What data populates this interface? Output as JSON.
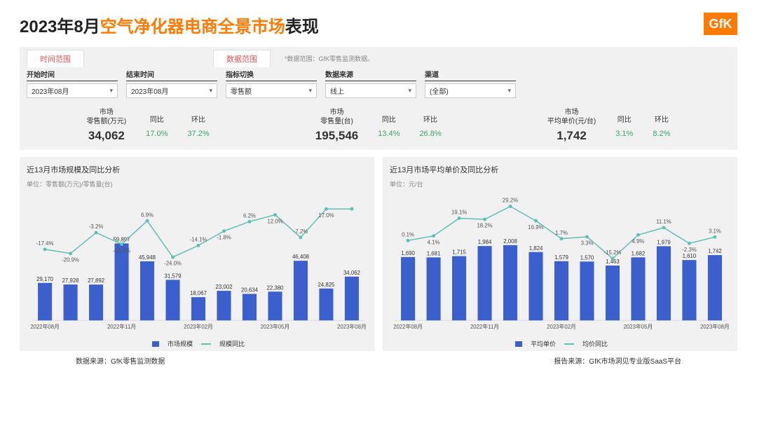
{
  "title": {
    "prefix": "2023年8月",
    "highlight": "空气净化器电商全景市场",
    "suffix": "表现"
  },
  "logo": "GfK",
  "tabs": {
    "time": "时间范围",
    "data": "数据范围",
    "note": "*数据范围：GfK零售监测数据。"
  },
  "filters": {
    "start": {
      "label": "开始时间",
      "value": "2023年08月"
    },
    "end": {
      "label": "结束时间",
      "value": "2023年08月"
    },
    "metric": {
      "label": "指标切换",
      "value": "零售额"
    },
    "source": {
      "label": "数据来源",
      "value": "线上"
    },
    "channel": {
      "label": "渠道",
      "value": "(全部)"
    }
  },
  "metrics": [
    {
      "label1": "市场",
      "label2": "零售额(万元)",
      "value": "34,062",
      "yoy_label": "同比",
      "yoy": "17.0%",
      "mom_label": "环比",
      "mom": "37.2%"
    },
    {
      "label1": "市场",
      "label2": "零售量(台)",
      "value": "195,546",
      "yoy_label": "同比",
      "yoy": "13.4%",
      "mom_label": "环比",
      "mom": "26.8%"
    },
    {
      "label1": "市场",
      "label2": "平均单价(元/台)",
      "value": "1,742",
      "yoy_label": "同比",
      "yoy": "3.1%",
      "mom_label": "环比",
      "mom": "8.2%"
    }
  ],
  "colors": {
    "bar": "#3b5fcc",
    "line": "#5fbfb0",
    "marker": "#5fbfb0",
    "grid": "#dddddd",
    "text": "#333333",
    "label": "#555555",
    "panel_bg": "#f1f1f1"
  },
  "chart_left": {
    "title": "近13月市场规模及同比分析",
    "unit": "单位：零售额(万元)/零售量(台)",
    "legend_bar": "市场规模",
    "legend_line": "规模同比",
    "xlabels_major": [
      "2022年08月",
      "",
      "",
      "2022年11月",
      "",
      "",
      "2023年02月",
      "",
      "",
      "2023年05月",
      "",
      "",
      "2023年08月"
    ],
    "bars": [
      29170,
      27928,
      27892,
      59897,
      45948,
      31579,
      18067,
      23002,
      20634,
      22380,
      46408,
      24825,
      34062
    ],
    "bar_labels": [
      "29,170",
      "27,928",
      "27,892",
      "59,897",
      "45,948",
      "31,579",
      "18,067",
      "23,002",
      "20,634",
      "22,380",
      "46,408",
      "24,825",
      "34,062"
    ],
    "bar_ymax": 70000,
    "line_pct": [
      -17.4,
      -20.9,
      -3.2,
      -13.0,
      6.9,
      -24.0,
      -14.1,
      -1.8,
      6.2,
      12.0,
      -7.2,
      17.0,
      17.0
    ],
    "line_labels": [
      "-17.4%",
      "-20.9%",
      "-3.2%",
      "-13.0%",
      "6.9%",
      "-24.0%",
      "-14.1%",
      "-1.8%",
      "6.2%",
      "12.0%",
      "-7.2%",
      "17.0%",
      ""
    ],
    "line_labels_alt": {
      "11": "17.0%"
    },
    "line_min": -30,
    "line_max": 25
  },
  "chart_right": {
    "title": "近13月市场平均单价及同比分析",
    "unit": "单位：元/台",
    "legend_bar": "平均单价",
    "legend_line": "均价同比",
    "xlabels_major": [
      "2022年08月",
      "",
      "",
      "2022年11月",
      "",
      "",
      "2023年02月",
      "",
      "",
      "2023年05月",
      "",
      "",
      "2023年08月"
    ],
    "bars": [
      1690,
      1681,
      1715,
      1984,
      2008,
      1824,
      1579,
      1570,
      1463,
      1682,
      1979,
      1610,
      1742
    ],
    "bar_labels": [
      "1,690",
      "1,681",
      "1,715",
      "1,984",
      "2,008",
      "1,824",
      "1,579",
      "1,570",
      "1,463",
      "1,682",
      "1,979",
      "1,610",
      "1,742"
    ],
    "bar_ymax": 2400,
    "line_pct": [
      0.1,
      4.1,
      19.1,
      18.2,
      29.2,
      16.9,
      1.7,
      3.3,
      -15.2,
      4.9,
      11.1,
      -2.3,
      3.1
    ],
    "line_labels": [
      "0.1%",
      "4.1%",
      "19.1%",
      "18.2%",
      "29.2%",
      "16.9%",
      "1.7%",
      "3.3%",
      "-15.2%",
      "4.9%",
      "11.1%",
      "-2.3%",
      "3.1%"
    ],
    "line_min": -20,
    "line_max": 35
  },
  "footer": {
    "left": "数据来源：GfK零售监测数据",
    "right": "报告来源：GfK市场洞见专业版SaaS平台"
  }
}
